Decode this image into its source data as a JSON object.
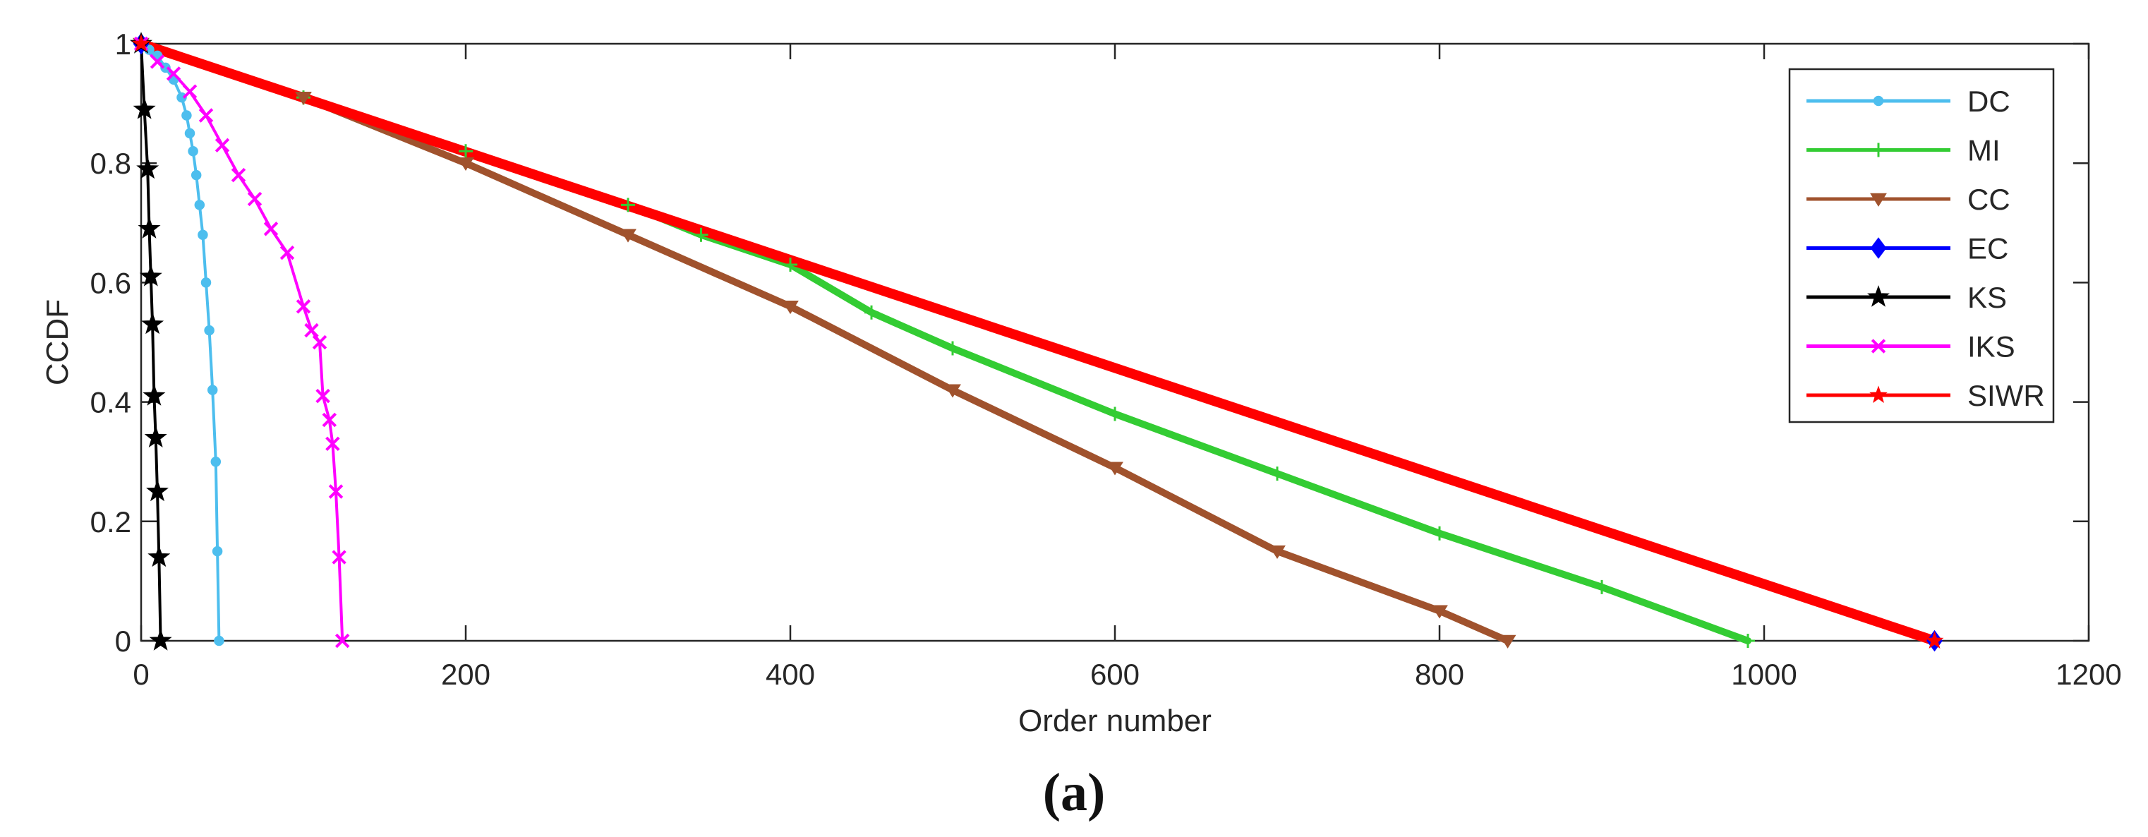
{
  "chart_data": {
    "type": "line",
    "title": "",
    "xlabel": "Order number",
    "ylabel": "CCDF",
    "xlim": [
      0,
      1200
    ],
    "ylim": [
      0,
      1
    ],
    "xticks": [
      0,
      200,
      400,
      600,
      800,
      1000,
      1200
    ],
    "yticks": [
      0,
      0.2,
      0.4,
      0.6,
      0.8,
      1
    ],
    "xtick_labels": [
      "0",
      "200",
      "400",
      "600",
      "800",
      "1000",
      "1200"
    ],
    "ytick_labels": [
      "0",
      "0.2",
      "0.4",
      "0.6",
      "0.8",
      "1"
    ],
    "grid": false,
    "legend_position": "top-right",
    "series": [
      {
        "name": "DC",
        "color": "#4DBEEE",
        "marker": "circle",
        "x": [
          0,
          5,
          10,
          15,
          20,
          25,
          28,
          30,
          32,
          34,
          36,
          38,
          40,
          42,
          44,
          46,
          47,
          48
        ],
        "y": [
          1,
          0.99,
          0.98,
          0.96,
          0.94,
          0.91,
          0.88,
          0.85,
          0.82,
          0.78,
          0.73,
          0.68,
          0.6,
          0.52,
          0.42,
          0.3,
          0.15,
          0
        ]
      },
      {
        "name": "MI",
        "color": "#33CC33",
        "marker": "plus",
        "x": [
          0,
          100,
          200,
          300,
          345,
          400,
          450,
          500,
          600,
          700,
          800,
          900,
          990
        ],
        "y": [
          1,
          0.91,
          0.82,
          0.73,
          0.68,
          0.63,
          0.55,
          0.49,
          0.38,
          0.28,
          0.18,
          0.09,
          0
        ]
      },
      {
        "name": "CC",
        "color": "#A0522D",
        "marker": "triangle-down",
        "x": [
          0,
          100,
          200,
          300,
          400,
          500,
          600,
          700,
          800,
          842
        ],
        "y": [
          1,
          0.91,
          0.8,
          0.68,
          0.56,
          0.42,
          0.29,
          0.15,
          0.05,
          0
        ]
      },
      {
        "name": "EC",
        "color": "#0000FF",
        "marker": "diamond",
        "x": [
          0,
          1105
        ],
        "y": [
          1,
          0
        ]
      },
      {
        "name": "KS",
        "color": "#000000",
        "marker": "star",
        "x": [
          0,
          2,
          4,
          5,
          6,
          7,
          8,
          9,
          10,
          11,
          12
        ],
        "y": [
          1,
          0.89,
          0.79,
          0.69,
          0.61,
          0.53,
          0.41,
          0.34,
          0.25,
          0.14,
          0
        ]
      },
      {
        "name": "IKS",
        "color": "#FF00FF",
        "marker": "x",
        "x": [
          0,
          10,
          20,
          30,
          40,
          50,
          60,
          70,
          80,
          90,
          100,
          105,
          110,
          112,
          116,
          118,
          120,
          122,
          124
        ],
        "y": [
          1,
          0.97,
          0.95,
          0.92,
          0.88,
          0.83,
          0.78,
          0.74,
          0.69,
          0.65,
          0.56,
          0.52,
          0.5,
          0.41,
          0.37,
          0.33,
          0.25,
          0.14,
          0
        ]
      },
      {
        "name": "SIWR",
        "color": "#FF0000",
        "marker": "star",
        "x": [
          0,
          1105
        ],
        "y": [
          1,
          0
        ]
      }
    ]
  },
  "caption": "(a)"
}
